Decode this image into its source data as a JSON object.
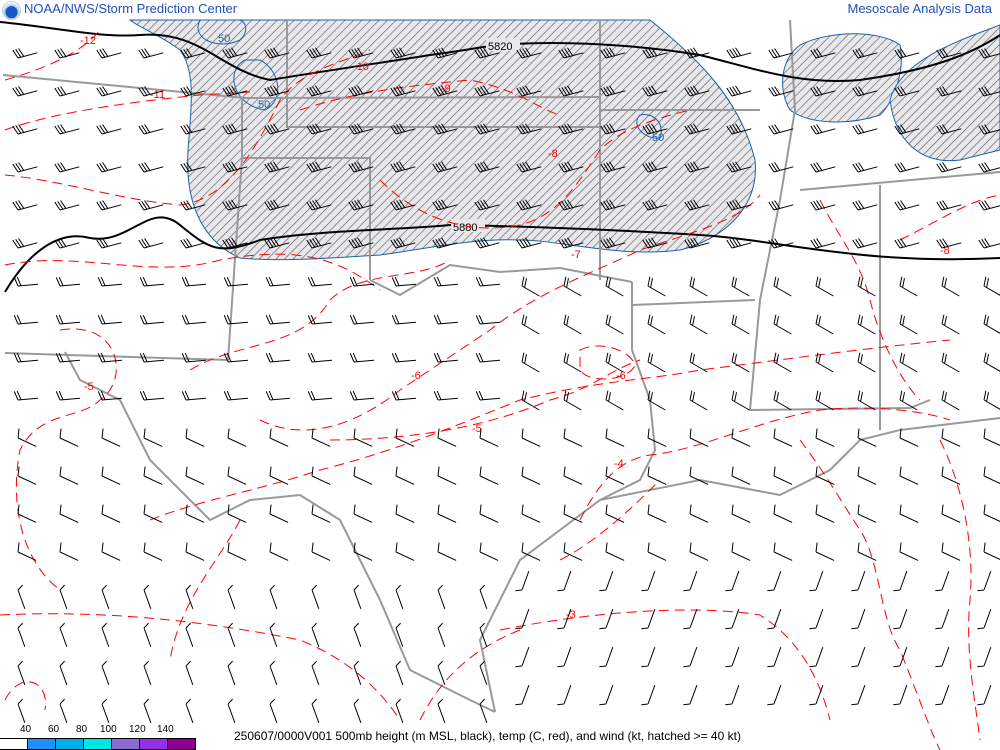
{
  "header": {
    "left_title": "NOAA/NWS/Storm Prediction Center",
    "right_title": "Mesoscale Analysis Data",
    "logo": "noaa-logo"
  },
  "footer": {
    "caption": "250607/0000V001 500mb height (m MSL, black), temp (C, red), and wind (kt, hatched >= 40 kt)",
    "legend": {
      "ticks": [
        "40",
        "60",
        "80",
        "100",
        "120",
        "140"
      ],
      "colors": [
        "#ffffff",
        "#1e90ff",
        "#00b0ea",
        "#00e5e5",
        "#8a6cd0",
        "#9430e8",
        "#8b0090"
      ]
    }
  },
  "map": {
    "colors": {
      "height": "#000000",
      "temp": "#ff0000",
      "wind_isotach": "#1f5fa8",
      "borders": "#999999"
    },
    "height_labels": [
      "5820",
      "5880"
    ],
    "temp_labels": [
      "-12",
      "-11",
      "-10",
      "-9",
      "-8",
      "-8",
      "-7",
      "-6",
      "-6",
      "-5",
      "-5",
      "-4",
      "-3"
    ],
    "isotach_labels": [
      "50",
      "50",
      "50"
    ]
  }
}
